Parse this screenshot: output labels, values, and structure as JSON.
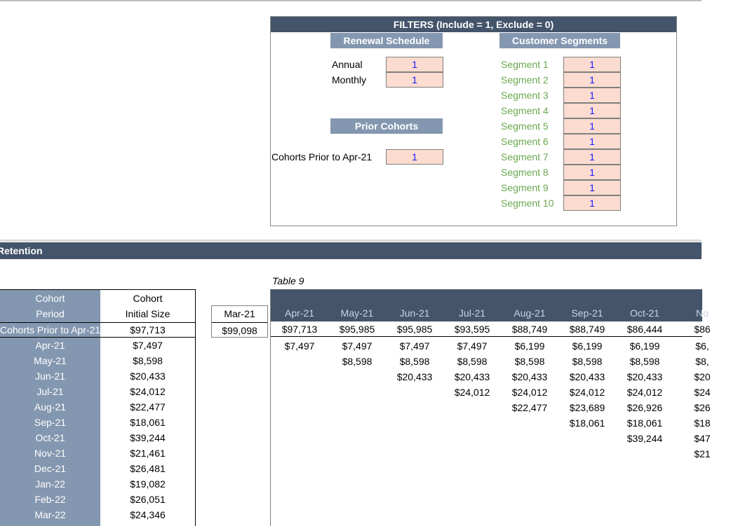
{
  "filters": {
    "title": "FILTERS (Include =  1, Exclude = 0)",
    "renewal_schedule": {
      "header": "Renewal Schedule",
      "items": [
        {
          "label": "Annual",
          "value": "1"
        },
        {
          "label": "Monthly",
          "value": "1"
        }
      ]
    },
    "prior_cohorts": {
      "header": "Prior Cohorts",
      "label": "Cohorts Prior to Apr-21",
      "value": "1"
    },
    "customer_segments": {
      "header": "Customer Segments",
      "items": [
        {
          "label": "Segment 1",
          "value": "1"
        },
        {
          "label": "Segment 2",
          "value": "1"
        },
        {
          "label": "Segment 3",
          "value": "1"
        },
        {
          "label": "Segment 4",
          "value": "1"
        },
        {
          "label": "Segment 5",
          "value": "1"
        },
        {
          "label": "Segment 6",
          "value": "1"
        },
        {
          "label": "Segment 7",
          "value": "1"
        },
        {
          "label": "Segment 8",
          "value": "1"
        },
        {
          "label": "Segment 9",
          "value": "1"
        },
        {
          "label": "Segment 10",
          "value": "1"
        }
      ]
    }
  },
  "retention": {
    "title": "Retention",
    "table_caption": "Table 9"
  },
  "cohort_table": {
    "header_period_1": "Cohort",
    "header_period_2": "Period",
    "header_size_1": "Cohort",
    "header_size_2": "Initial Size",
    "prior_row": {
      "period": "Cohorts Prior to Apr-21",
      "size": "$97,713"
    },
    "rows": [
      {
        "period": "Apr-21",
        "size": "$7,497"
      },
      {
        "period": "May-21",
        "size": "$8,598"
      },
      {
        "period": "Jun-21",
        "size": "$20,433"
      },
      {
        "period": "Jul-21",
        "size": "$24,012"
      },
      {
        "period": "Aug-21",
        "size": "$22,477"
      },
      {
        "period": "Sep-21",
        "size": "$18,061"
      },
      {
        "period": "Oct-21",
        "size": "$39,244"
      },
      {
        "period": "Nov-21",
        "size": "$21,461"
      },
      {
        "period": "Dec-21",
        "size": "$26,481"
      },
      {
        "period": "Jan-22",
        "size": "$19,082"
      },
      {
        "period": "Feb-22",
        "size": "$26,051"
      },
      {
        "period": "Mar-22",
        "size": "$24,346"
      }
    ]
  },
  "mar_column": {
    "header": "Mar-21",
    "value": "$99,098"
  },
  "grid": {
    "months": [
      "Apr-21",
      "May-21",
      "Jun-21",
      "Jul-21",
      "Aug-21",
      "Sep-21",
      "Oct-21",
      "No"
    ],
    "prior_row": [
      "$97,713",
      "$95,985",
      "$95,985",
      "$93,595",
      "$88,749",
      "$88,749",
      "$86,444",
      "$86"
    ],
    "rows": [
      [
        "$7,497",
        "$7,497",
        "$7,497",
        "$7,497",
        "$6,199",
        "$6,199",
        "$6,199",
        "$6,"
      ],
      [
        "",
        "$8,598",
        "$8,598",
        "$8,598",
        "$8,598",
        "$8,598",
        "$8,598",
        "$8,"
      ],
      [
        "",
        "",
        "$20,433",
        "$20,433",
        "$20,433",
        "$20,433",
        "$20,433",
        "$20"
      ],
      [
        "",
        "",
        "",
        "$24,012",
        "$24,012",
        "$24,012",
        "$24,012",
        "$24"
      ],
      [
        "",
        "",
        "",
        "",
        "$22,477",
        "$23,689",
        "$26,926",
        "$26"
      ],
      [
        "",
        "",
        "",
        "",
        "",
        "$18,061",
        "$18,061",
        "$18"
      ],
      [
        "",
        "",
        "",
        "",
        "",
        "",
        "$39,244",
        "$47"
      ],
      [
        "",
        "",
        "",
        "",
        "",
        "",
        "",
        "$21"
      ]
    ]
  }
}
